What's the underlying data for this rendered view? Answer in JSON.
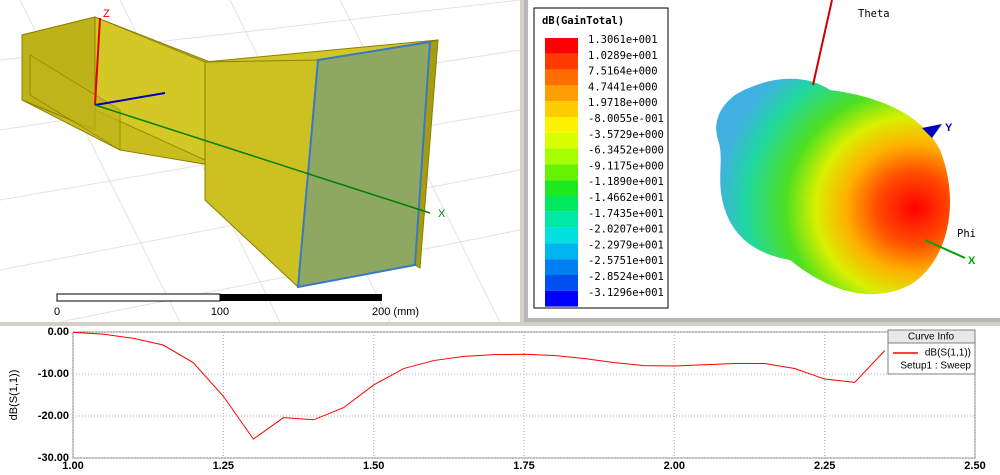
{
  "model_view": {
    "axis_z": "Z",
    "axis_x": "X",
    "scale_labels": [
      "0",
      "100",
      "200 (mm)"
    ]
  },
  "pattern_view": {
    "legend_title": "dB(GainTotal)",
    "labels": [
      "1.3061e+001",
      "1.0289e+001",
      "7.5164e+000",
      "4.7441e+000",
      "1.9718e+000",
      "-8.0055e-001",
      "-3.5729e+000",
      "-6.3452e+000",
      "-9.1175e+000",
      "-1.1890e+001",
      "-1.4662e+001",
      "-1.7435e+001",
      "-2.0207e+001",
      "-2.2979e+001",
      "-2.5751e+001",
      "-2.8524e+001",
      "-3.1296e+001"
    ],
    "colors": [
      "#ff0000",
      "#ff3a00",
      "#ff6e00",
      "#ff9e00",
      "#ffcc00",
      "#fff200",
      "#d8ff00",
      "#a6ff00",
      "#66f200",
      "#1ee81e",
      "#00e860",
      "#00e8a8",
      "#00e0e0",
      "#00b4f0",
      "#0080f0",
      "#0050f0",
      "#0000ff"
    ],
    "axis_theta": "Theta",
    "axis_y": "Y",
    "axis_phi": "Phi",
    "axis_x": "X"
  },
  "chart_data": {
    "type": "line",
    "ylabel": "dB(S(1,1))",
    "legend_title": "Curve Info",
    "legend_subtitle": "Setup1 : Sweep",
    "x": [
      1.0,
      1.05,
      1.1,
      1.15,
      1.2,
      1.25,
      1.3,
      1.35,
      1.4,
      1.45,
      1.5,
      1.55,
      1.6,
      1.65,
      1.7,
      1.75,
      1.8,
      1.85,
      1.9,
      1.95,
      2.0,
      2.05,
      2.1,
      2.15,
      2.2,
      2.25,
      2.3,
      2.35
    ],
    "series": [
      {
        "name": "dB(S(1,1))",
        "color": "#ff0000",
        "values": [
          -0.1,
          -0.5,
          -1.5,
          -3.1,
          -7.3,
          -15.3,
          -25.5,
          -20.4,
          -20.9,
          -18.0,
          -12.6,
          -8.7,
          -6.8,
          -5.8,
          -5.4,
          -5.3,
          -5.6,
          -6.3,
          -7.3,
          -8.0,
          -8.1,
          -7.8,
          -7.5,
          -7.5,
          -8.7,
          -11.2,
          -12.0,
          -4.4
        ]
      }
    ],
    "xlim": [
      1.0,
      2.5
    ],
    "ylim": [
      -30,
      0
    ],
    "xticks": [
      {
        "value": 1.0,
        "label": "1.00"
      },
      {
        "value": 1.25,
        "label": "1.25"
      },
      {
        "value": 1.5,
        "label": "1.50"
      },
      {
        "value": 1.75,
        "label": "1.75"
      },
      {
        "value": 2.0,
        "label": "2.00"
      },
      {
        "value": 2.25,
        "label": "2.25"
      },
      {
        "value": 2.5,
        "label": "2.50"
      }
    ],
    "yticks": [
      {
        "value": 0,
        "label": "0.00"
      },
      {
        "value": -10,
        "label": "-10.00"
      },
      {
        "value": -20,
        "label": "-20.00"
      },
      {
        "value": -30,
        "label": "-30.00"
      }
    ],
    "grid": true
  }
}
